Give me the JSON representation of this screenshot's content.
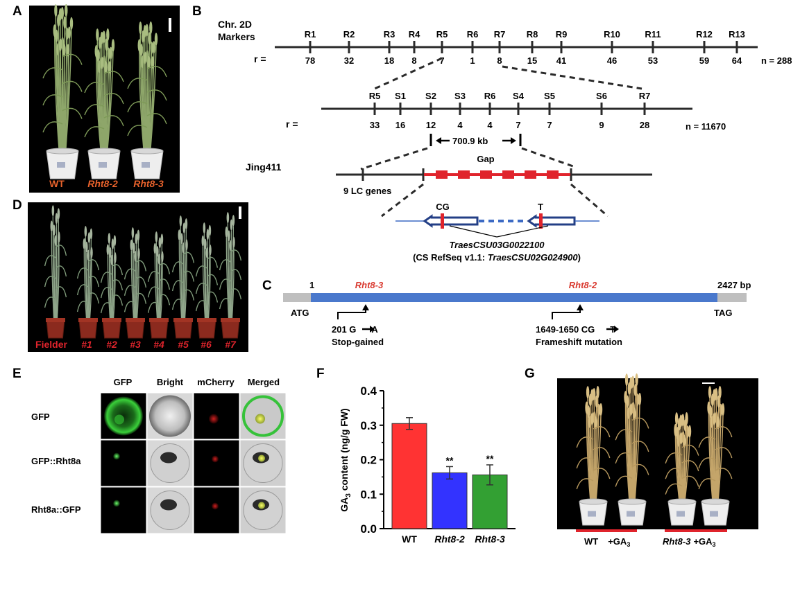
{
  "panels": {
    "a": {
      "label": "A",
      "pots": [
        "WT",
        "Rht8-2",
        "Rht8-3"
      ],
      "label_color": "#e8622c"
    },
    "b": {
      "label": "B",
      "chr_title": "Chr. 2D",
      "markers_title": "Markers",
      "r_label": "r =",
      "coarse_markers": [
        "R1",
        "R2",
        "R3",
        "R4",
        "R5",
        "R6",
        "R7",
        "R8",
        "R9",
        "R10",
        "R11",
        "R12",
        "R13"
      ],
      "coarse_r": [
        "78",
        "32",
        "18",
        "8",
        "7",
        "1",
        "8",
        "15",
        "41",
        "46",
        "53",
        "59",
        "64"
      ],
      "coarse_n": "n = 288",
      "fine_markers": [
        "R5",
        "S1",
        "S2",
        "S3",
        "R6",
        "S4",
        "S5",
        "S6",
        "R7"
      ],
      "fine_r": [
        "33",
        "16",
        "12",
        "4",
        "4",
        "7",
        "7",
        "9",
        "28"
      ],
      "fine_n": "n = 11670",
      "interval": "700.9 kb",
      "cultivar": "Jing411",
      "gap_label": "Gap",
      "lc_genes": "9 LC genes",
      "snp_left": "CG",
      "snp_right": "T",
      "gene_id": "TraesCSU03G0022100",
      "refseq_prefix": "(CS RefSeq v1.1: ",
      "refseq_gene": "TraesCSU02G024900",
      "refseq_suffix": ")"
    },
    "c": {
      "label": "C",
      "start": "1",
      "end": "2427 bp",
      "allele_left": "Rht8-3",
      "allele_right": "Rht8-2",
      "atg": "ATG",
      "tag": "TAG",
      "mut_left_pos": "201 G",
      "mut_left_to": "A",
      "mut_left_type": "Stop-gained",
      "mut_right_pos": "1649-1650  CG",
      "mut_right_to": "T",
      "mut_right_type": "Frameshift mutation",
      "colors": {
        "cds": "#4a78cc",
        "utr": "#bfbfbf",
        "allele": "#d93a30"
      }
    },
    "d": {
      "label": "D",
      "pots": [
        "Fielder",
        "#1",
        "#2",
        "#3",
        "#4",
        "#5",
        "#6",
        "#7"
      ],
      "label_color": "#e0242c"
    },
    "e": {
      "label": "E",
      "columns": [
        "GFP",
        "Bright",
        "mCherry",
        "Merged"
      ],
      "rows": [
        "GFP",
        "GFP::Rht8a",
        "Rht8a::GFP"
      ]
    },
    "g": {
      "label": "G",
      "group_left": "WT",
      "group_left_treat": "+GA",
      "group_right": "Rht8-3",
      "group_right_treat": "+GA",
      "ga_subscript": "3",
      "bar_color": "#e0242c"
    }
  },
  "chart_data": {
    "type": "bar",
    "panel_label": "F",
    "categories": [
      "WT",
      "Rht8-2",
      "Rht8-3"
    ],
    "values": [
      0.305,
      0.162,
      0.156
    ],
    "errors": [
      0.017,
      0.018,
      0.029
    ],
    "significance": [
      "",
      "**",
      "**"
    ],
    "colors": [
      "#ff3333",
      "#3333ff",
      "#33a033"
    ],
    "ylabel_main": "GA",
    "ylabel_sub": "3",
    "ylabel_rest": " content (ng/g FW)",
    "ylim": [
      0.0,
      0.4
    ],
    "yticks": [
      "0.0",
      "0.1",
      "0.2",
      "0.3",
      "0.4"
    ]
  }
}
